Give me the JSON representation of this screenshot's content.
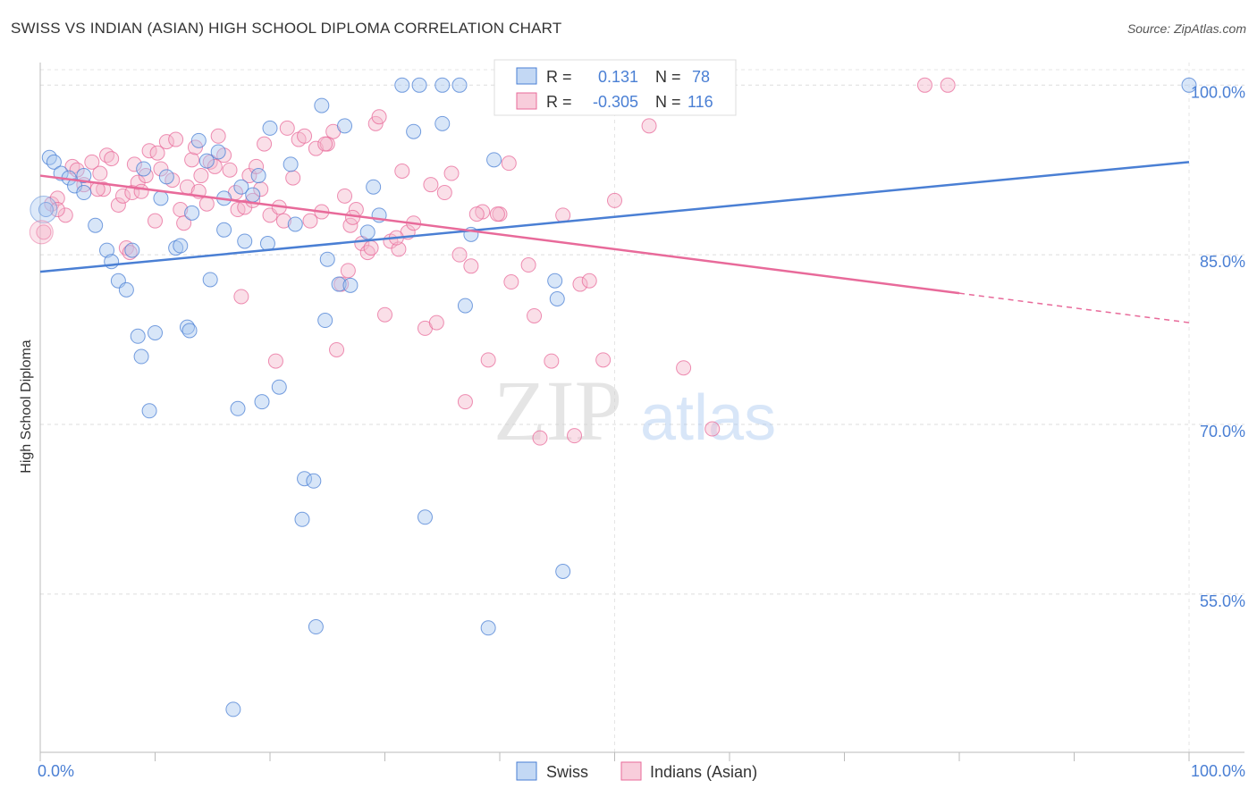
{
  "title": "SWISS VS INDIAN (ASIAN) HIGH SCHOOL DIPLOMA CORRELATION CHART",
  "source": "Source: ZipAtlas.com",
  "colors": {
    "blue": "#4a7fd4",
    "blue_fill": "#a9c8f0",
    "pink": "#e86a9a",
    "pink_fill": "#f5b8cc",
    "axis_text": "#4a7fd4"
  },
  "chart_data": {
    "type": "scatter",
    "ylabel": "High School Diploma",
    "xlim": [
      0,
      100
    ],
    "ylim": [
      41,
      102
    ],
    "x_tick_labels": [
      "0.0%",
      "100.0%"
    ],
    "y_ticks": [
      {
        "value": 100,
        "label": "100.0%"
      },
      {
        "value": 85,
        "label": "85.0%"
      },
      {
        "value": 70,
        "label": "70.0%"
      },
      {
        "value": 55,
        "label": "55.0%"
      }
    ],
    "grid": true,
    "legend": {
      "r_label": "R =",
      "n_label": "N =",
      "rows": [
        {
          "r": "0.131",
          "n": "78"
        },
        {
          "r": "-0.305",
          "n": "116"
        }
      ]
    },
    "watermark": {
      "zip": "ZIP",
      "atlas": "atlas"
    },
    "series": [
      {
        "name": "Swiss",
        "trend": {
          "x": [
            0,
            100
          ],
          "y": [
            83.5,
            93.2
          ],
          "solid_to": 100
        },
        "points": [
          [
            0.5,
            89
          ],
          [
            0.8,
            93.6
          ],
          [
            1.2,
            93.2
          ],
          [
            1.8,
            92.2
          ],
          [
            2.5,
            91.8
          ],
          [
            3.0,
            91.1
          ],
          [
            3.8,
            92.0
          ],
          [
            3.8,
            90.5
          ],
          [
            4.8,
            87.6
          ],
          [
            5.8,
            85.4
          ],
          [
            6.2,
            84.4
          ],
          [
            6.8,
            82.7
          ],
          [
            7.5,
            81.9
          ],
          [
            8.0,
            85.4
          ],
          [
            8.5,
            77.8
          ],
          [
            8.8,
            76.0
          ],
          [
            9.5,
            71.2
          ],
          [
            10.0,
            78.1
          ],
          [
            10.5,
            90.0
          ],
          [
            11.0,
            91.9
          ],
          [
            11.8,
            85.6
          ],
          [
            12.2,
            85.8
          ],
          [
            12.8,
            78.6
          ],
          [
            13.0,
            78.3
          ],
          [
            13.2,
            88.7
          ],
          [
            13.8,
            95.1
          ],
          [
            14.5,
            93.3
          ],
          [
            14.8,
            82.8
          ],
          [
            15.5,
            94.1
          ],
          [
            16.0,
            87.2
          ],
          [
            16.8,
            44.8
          ],
          [
            17.2,
            71.4
          ],
          [
            17.5,
            91.0
          ],
          [
            17.8,
            86.2
          ],
          [
            18.5,
            90.3
          ],
          [
            19.0,
            92.0
          ],
          [
            19.3,
            72.0
          ],
          [
            19.8,
            86.0
          ],
          [
            20.0,
            96.2
          ],
          [
            20.8,
            73.3
          ],
          [
            21.8,
            93.0
          ],
          [
            22.2,
            87.7
          ],
          [
            22.8,
            61.6
          ],
          [
            23.0,
            65.2
          ],
          [
            23.8,
            65.0
          ],
          [
            24.0,
            52.1
          ],
          [
            24.5,
            98.2
          ],
          [
            24.8,
            79.2
          ],
          [
            25.0,
            84.6
          ],
          [
            26.0,
            82.4
          ],
          [
            26.5,
            96.4
          ],
          [
            27.0,
            82.3
          ],
          [
            28.5,
            87.0
          ],
          [
            29.0,
            91.0
          ],
          [
            29.5,
            88.5
          ],
          [
            31.5,
            100
          ],
          [
            32.5,
            95.9
          ],
          [
            33.0,
            100
          ],
          [
            33.5,
            61.8
          ],
          [
            35.0,
            96.6
          ],
          [
            35.0,
            100
          ],
          [
            36.5,
            100
          ],
          [
            37.0,
            80.5
          ],
          [
            37.5,
            86.8
          ],
          [
            39.0,
            52.0
          ],
          [
            39.5,
            93.4
          ],
          [
            41.0,
            100
          ],
          [
            42.5,
            100
          ],
          [
            44.8,
            82.7
          ],
          [
            45.0,
            81.1
          ],
          [
            45.5,
            57.0
          ],
          [
            46.5,
            100
          ],
          [
            47.5,
            100
          ],
          [
            50.0,
            100
          ],
          [
            51.5,
            100
          ],
          [
            100,
            100
          ],
          [
            16.0,
            90.0
          ],
          [
            9.0,
            92.6
          ]
        ]
      },
      {
        "name": "Indians (Asian)",
        "trend": {
          "x": [
            0,
            100
          ],
          "y": [
            92.0,
            79.0
          ],
          "solid_to": 80
        },
        "points": [
          [
            0.3,
            87
          ],
          [
            1.0,
            89.5
          ],
          [
            1.5,
            90
          ],
          [
            2.2,
            88.5
          ],
          [
            2.8,
            92.8
          ],
          [
            3.2,
            92.5
          ],
          [
            3.8,
            91.2
          ],
          [
            4.5,
            93.2
          ],
          [
            5.2,
            92.2
          ],
          [
            5.5,
            90.8
          ],
          [
            5.8,
            93.8
          ],
          [
            6.2,
            93.5
          ],
          [
            6.8,
            89.4
          ],
          [
            7.2,
            90.2
          ],
          [
            7.5,
            85.6
          ],
          [
            8.0,
            90.5
          ],
          [
            8.2,
            93.0
          ],
          [
            8.5,
            91.4
          ],
          [
            8.8,
            90.6
          ],
          [
            9.2,
            92.0
          ],
          [
            9.5,
            94.2
          ],
          [
            10.0,
            88.0
          ],
          [
            10.2,
            94.0
          ],
          [
            10.5,
            92.6
          ],
          [
            11.0,
            95.0
          ],
          [
            11.5,
            91.6
          ],
          [
            11.8,
            95.2
          ],
          [
            12.2,
            89.0
          ],
          [
            12.5,
            87.8
          ],
          [
            12.8,
            91.0
          ],
          [
            13.2,
            93.4
          ],
          [
            13.5,
            94.5
          ],
          [
            14.0,
            92.0
          ],
          [
            14.5,
            89.5
          ],
          [
            14.8,
            93.2
          ],
          [
            15.2,
            92.8
          ],
          [
            15.5,
            95.5
          ],
          [
            16.0,
            93.8
          ],
          [
            16.5,
            92.5
          ],
          [
            17.0,
            90.5
          ],
          [
            17.2,
            89.0
          ],
          [
            17.5,
            81.3
          ],
          [
            17.8,
            89.2
          ],
          [
            18.2,
            92.0
          ],
          [
            18.5,
            89.8
          ],
          [
            18.8,
            92.8
          ],
          [
            19.2,
            90.8
          ],
          [
            19.5,
            94.8
          ],
          [
            20.0,
            88.5
          ],
          [
            20.5,
            75.6
          ],
          [
            20.8,
            89.2
          ],
          [
            21.2,
            88.0
          ],
          [
            21.5,
            96.2
          ],
          [
            22.0,
            91.8
          ],
          [
            22.5,
            95.2
          ],
          [
            23.0,
            95.5
          ],
          [
            23.5,
            88.0
          ],
          [
            24.0,
            94.4
          ],
          [
            24.5,
            88.8
          ],
          [
            25.0,
            94.8
          ],
          [
            25.5,
            95.9
          ],
          [
            25.8,
            76.6
          ],
          [
            26.2,
            82.4
          ],
          [
            26.8,
            83.6
          ],
          [
            27.0,
            87.6
          ],
          [
            27.5,
            89.0
          ],
          [
            28.0,
            86.0
          ],
          [
            28.5,
            85.2
          ],
          [
            28.8,
            85.6
          ],
          [
            29.2,
            96.6
          ],
          [
            29.5,
            97.2
          ],
          [
            30.0,
            79.7
          ],
          [
            30.5,
            86.2
          ],
          [
            31.2,
            85.5
          ],
          [
            31.5,
            92.4
          ],
          [
            32.0,
            87.0
          ],
          [
            32.5,
            87.8
          ],
          [
            33.5,
            78.5
          ],
          [
            34.0,
            91.2
          ],
          [
            34.5,
            79.0
          ],
          [
            35.2,
            90.5
          ],
          [
            35.8,
            92.2
          ],
          [
            36.5,
            85.0
          ],
          [
            37.0,
            72.0
          ],
          [
            37.5,
            84.0
          ],
          [
            38.5,
            88.8
          ],
          [
            39.0,
            75.7
          ],
          [
            40.0,
            88.6
          ],
          [
            40.8,
            93.1
          ],
          [
            41.0,
            82.6
          ],
          [
            42.5,
            84.1
          ],
          [
            43.0,
            79.6
          ],
          [
            43.5,
            68.8
          ],
          [
            44.5,
            75.6
          ],
          [
            45.5,
            88.5
          ],
          [
            46.5,
            69.0
          ],
          [
            47.0,
            82.4
          ],
          [
            47.8,
            82.7
          ],
          [
            49.0,
            75.7
          ],
          [
            50.0,
            89.8
          ],
          [
            50.5,
            100
          ],
          [
            53.0,
            96.4
          ],
          [
            56.0,
            75.0
          ],
          [
            58.5,
            69.6
          ],
          [
            77.0,
            100
          ],
          [
            79.0,
            100
          ],
          [
            1.5,
            89.0
          ],
          [
            5.0,
            90.8
          ],
          [
            7.8,
            85.2
          ],
          [
            13.8,
            90.6
          ],
          [
            24.8,
            94.8
          ],
          [
            27.2,
            88.3
          ],
          [
            31.0,
            86.5
          ],
          [
            38.0,
            88.6
          ],
          [
            39.8,
            88.6
          ],
          [
            26.5,
            90.2
          ]
        ]
      }
    ]
  }
}
